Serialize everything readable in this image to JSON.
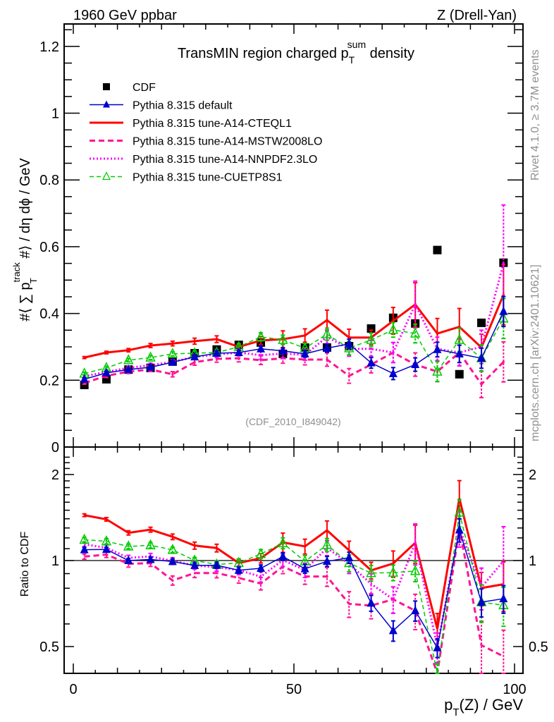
{
  "chart_data": {
    "type": "line",
    "header_left": "1960 GeV ppbar",
    "header_right": "Z (Drell-Yan)",
    "title_prefix": "TransMIN region charged p",
    "title_sub": "T",
    "title_sup": "sum",
    "title_suffix": " density",
    "ylabel_parts": {
      "pre": "#⟨ ∑ p",
      "sup": "track",
      "sub": "T",
      "post": " #⟩ / dη dϕ / GeV"
    },
    "xlabel_parts": {
      "pre": "p",
      "sub": "T",
      "post": "(Z) / GeV"
    },
    "ratio_ylabel": "Ratio to CDF",
    "analysis_id": "(CDF_2010_I849042)",
    "side_text_top": "Rivet 4.1.0, ≥ 3.7M events",
    "side_text_bottom": "mcplots.cern.ch [arXiv:2401.10621]",
    "xlim": [
      -2,
      102
    ],
    "ylim": [
      0,
      1.27
    ],
    "ratio_ylim": [
      0.4,
      2.3
    ],
    "xticks": [
      "0",
      "50",
      "100"
    ],
    "yticks": [
      "0",
      "0.2",
      "0.4",
      "0.6",
      "0.8",
      "1",
      "1.2"
    ],
    "ratio_yticks": [
      "0.5",
      "1",
      "2"
    ],
    "x": [
      2.5,
      7.5,
      12.5,
      17.5,
      22.5,
      27.5,
      32.5,
      37.5,
      42.5,
      47.5,
      52.5,
      57.5,
      62.5,
      67.5,
      72.5,
      77.5,
      82.5,
      87.5,
      92.5,
      97.5
    ],
    "data": {
      "name": "CDF",
      "values": [
        0.186,
        0.203,
        0.232,
        0.237,
        0.256,
        0.281,
        0.292,
        0.306,
        0.313,
        0.279,
        0.298,
        0.298,
        0.302,
        0.355,
        0.387,
        0.37,
        0.59,
        0.218,
        0.372,
        0.552
      ]
    },
    "series": [
      {
        "name": "Pythia 8.315 default",
        "color": "#0000cc",
        "style": "solid-thin",
        "marker": "triangle-filled",
        "values": [
          0.203,
          0.222,
          0.232,
          0.239,
          0.254,
          0.27,
          0.281,
          0.283,
          0.294,
          0.288,
          0.279,
          0.296,
          0.309,
          0.252,
          0.22,
          0.247,
          0.292,
          0.279,
          0.266,
          0.406
        ],
        "errors": [
          0.004,
          0.004,
          0.004,
          0.005,
          0.005,
          0.006,
          0.007,
          0.007,
          0.008,
          0.009,
          0.01,
          0.012,
          0.014,
          0.016,
          0.018,
          0.02,
          0.022,
          0.026,
          0.03,
          0.045
        ]
      },
      {
        "name": "Pythia 8.315 tune-A14-CTEQL1",
        "color": "#ff0000",
        "style": "solid-thick",
        "marker": "none",
        "values": [
          0.268,
          0.283,
          0.29,
          0.304,
          0.31,
          0.317,
          0.323,
          0.3,
          0.319,
          0.323,
          0.334,
          0.38,
          0.328,
          0.328,
          0.378,
          0.427,
          0.34,
          0.36,
          0.298,
          0.456
        ],
        "errors": [
          0.003,
          0.004,
          0.005,
          0.006,
          0.007,
          0.009,
          0.01,
          0.01,
          0.012,
          0.025,
          0.02,
          0.03,
          0.025,
          0.022,
          0.04,
          0.065,
          0.045,
          0.055,
          0.04,
          0.09
        ]
      },
      {
        "name": "Pythia 8.315 tune-A14-MSTW2008LO",
        "color": "#ff1493",
        "style": "dashed-thick",
        "marker": "none",
        "values": [
          0.192,
          0.213,
          0.226,
          0.232,
          0.218,
          0.254,
          0.264,
          0.266,
          0.26,
          0.266,
          0.262,
          0.262,
          0.213,
          0.247,
          0.283,
          0.247,
          0.226,
          0.283,
          0.188,
          0.255
        ],
        "errors": [
          0.004,
          0.005,
          0.006,
          0.006,
          0.008,
          0.009,
          0.01,
          0.011,
          0.013,
          0.015,
          0.016,
          0.02,
          0.022,
          0.025,
          0.03,
          0.035,
          0.03,
          0.04,
          0.04,
          0.06
        ]
      },
      {
        "name": "Pythia 8.315 tune-A14-NNPDF2.3LO",
        "color": "#ff00ff",
        "style": "dotted-thick",
        "marker": "none",
        "values": [
          0.212,
          0.225,
          0.237,
          0.245,
          0.255,
          0.27,
          0.277,
          0.283,
          0.275,
          0.28,
          0.276,
          0.33,
          0.294,
          0.294,
          0.283,
          0.427,
          0.294,
          0.283,
          0.3,
          0.55
        ],
        "errors": [
          0.004,
          0.005,
          0.005,
          0.006,
          0.007,
          0.008,
          0.009,
          0.01,
          0.012,
          0.014,
          0.016,
          0.02,
          0.022,
          0.025,
          0.03,
          0.07,
          0.035,
          0.04,
          0.05,
          0.175
        ]
      },
      {
        "name": "Pythia 8.315 tune-CUETP8S1",
        "color": "#00cc00",
        "style": "dashed-thin",
        "marker": "triangle-open",
        "values": [
          0.22,
          0.237,
          0.26,
          0.268,
          0.279,
          0.281,
          0.283,
          0.3,
          0.33,
          0.321,
          0.296,
          0.338,
          0.296,
          0.321,
          0.351,
          0.34,
          0.226,
          0.321,
          0.266,
          0.385
        ],
        "errors": [
          0.004,
          0.005,
          0.005,
          0.006,
          0.006,
          0.007,
          0.008,
          0.009,
          0.012,
          0.014,
          0.014,
          0.018,
          0.02,
          0.02,
          0.022,
          0.028,
          0.03,
          0.035,
          0.04,
          0.06
        ]
      }
    ],
    "legend_position": "top-left",
    "grid": false
  }
}
